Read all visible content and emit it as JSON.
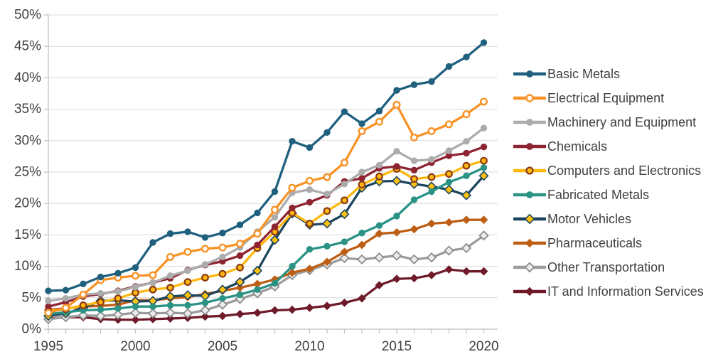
{
  "chart_data": {
    "type": "line",
    "title": "",
    "xlabel": "",
    "ylabel": "",
    "x_start": 1995,
    "x_end": 2020,
    "x": [
      1995,
      1996,
      1997,
      1998,
      1999,
      2000,
      2001,
      2002,
      2003,
      2004,
      2005,
      2006,
      2007,
      2008,
      2009,
      2010,
      2011,
      2012,
      2013,
      2014,
      2015,
      2016,
      2017,
      2018,
      2019,
      2020
    ],
    "x_axis_labels": [
      "1995",
      "2000",
      "2005",
      "2010",
      "2015",
      "2020"
    ],
    "y_axis_labels": [
      "0%",
      "5%",
      "10%",
      "15%",
      "20%",
      "25%",
      "30%",
      "35%",
      "40%",
      "45%",
      "50%"
    ],
    "ylim": [
      0,
      50
    ],
    "y_step": 5,
    "grid": true,
    "legend_position": "right",
    "axis_colors": {
      "grid": "#D9D9D9",
      "axis_line": "#BFBFBF",
      "tick": "#BFBFBF",
      "label_text": "#404040"
    },
    "series": [
      {
        "name": "Basic Metals",
        "color": "#20607F",
        "marker": {
          "shape": "circle",
          "fill": "#20607F",
          "stroke": "#20607F",
          "stroke_width": 0
        },
        "values": [
          6.1,
          6.2,
          7.2,
          8.3,
          8.9,
          9.8,
          13.8,
          15.2,
          15.5,
          14.6,
          15.3,
          16.6,
          18.5,
          21.9,
          29.9,
          28.9,
          31.3,
          34.6,
          32.7,
          34.7,
          38.0,
          38.9,
          39.4,
          41.8,
          43.3,
          45.6
        ]
      },
      {
        "name": "Electrical Equipment",
        "color": "#F79226",
        "marker": {
          "shape": "circle",
          "fill": "#FFFFFF",
          "stroke": "#F79226",
          "stroke_width": 2.4
        },
        "values": [
          2.6,
          3.4,
          5.5,
          7.8,
          8.2,
          8.5,
          8.6,
          11.5,
          12.3,
          12.8,
          13.0,
          13.6,
          15.2,
          19.0,
          22.5,
          23.6,
          24.2,
          26.5,
          31.5,
          33.0,
          35.7,
          30.5,
          31.5,
          32.6,
          34.2,
          36.2
        ]
      },
      {
        "name": "Machinery and Equipment",
        "color": "#ACACAC",
        "marker": {
          "shape": "circle",
          "fill": "#ACACAC",
          "stroke": "#ACACAC",
          "stroke_width": 0
        },
        "values": [
          4.5,
          4.9,
          5.5,
          5.7,
          6.0,
          6.7,
          7.4,
          8.5,
          9.3,
          10.3,
          11.5,
          13.0,
          15.5,
          17.8,
          21.7,
          22.2,
          21.5,
          23.1,
          25.0,
          26.1,
          28.3,
          26.8,
          27.0,
          28.4,
          29.9,
          32.0
        ]
      },
      {
        "name": "Chemicals",
        "color": "#8E2432",
        "marker": {
          "shape": "circle",
          "fill": "#8E2432",
          "stroke": "#8E2432",
          "stroke_width": 0
        },
        "values": [
          3.6,
          4.3,
          5.2,
          5.6,
          6.1,
          6.8,
          7.4,
          8.1,
          9.4,
          10.2,
          10.8,
          11.7,
          13.4,
          16.3,
          19.3,
          20.2,
          21.3,
          23.5,
          24.0,
          25.6,
          25.9,
          25.3,
          26.5,
          27.6,
          28.0,
          29.0
        ]
      },
      {
        "name": "Computers and Electronics",
        "color": "#FFB810",
        "marker": {
          "shape": "circle",
          "fill": "#FFB810",
          "stroke": "#8A3A12",
          "stroke_width": 2.2
        },
        "values": [
          2.9,
          3.2,
          3.8,
          4.3,
          4.9,
          5.8,
          6.3,
          6.6,
          7.5,
          8.2,
          8.8,
          9.8,
          12.9,
          15.5,
          18.5,
          16.8,
          18.8,
          20.5,
          23.0,
          24.3,
          25.5,
          23.9,
          24.2,
          24.7,
          26.0,
          26.8
        ]
      },
      {
        "name": "Fabricated Metals",
        "color": "#2A9384",
        "marker": {
          "shape": "circle",
          "fill": "#2A9384",
          "stroke": "#2A9384",
          "stroke_width": 0
        },
        "values": [
          2.4,
          2.7,
          3.0,
          3.1,
          3.3,
          3.6,
          3.6,
          3.8,
          3.8,
          4.2,
          4.9,
          5.5,
          6.3,
          7.3,
          10.0,
          12.7,
          13.2,
          13.9,
          15.3,
          16.5,
          18.0,
          20.6,
          21.9,
          23.4,
          24.4,
          25.7
        ]
      },
      {
        "name": "Motor Vehicles",
        "color": "#1C455E",
        "marker": {
          "shape": "diamond",
          "fill": "#FFC20E",
          "stroke": "#1C455E",
          "stroke_width": 1.6
        },
        "values": [
          2.1,
          2.5,
          3.4,
          4.5,
          4.6,
          4.4,
          4.5,
          5.2,
          5.4,
          5.3,
          6.3,
          7.5,
          9.3,
          14.2,
          18.4,
          16.6,
          16.8,
          18.3,
          22.5,
          23.5,
          23.6,
          23.1,
          22.7,
          22.2,
          21.3,
          24.4
        ]
      },
      {
        "name": "Pharmaceuticals",
        "color": "#BC5E15",
        "marker": {
          "shape": "diamond",
          "fill": "#BC5E15",
          "stroke": "#BC5E15",
          "stroke_width": 0
        },
        "values": [
          3.1,
          3.3,
          3.6,
          3.7,
          3.9,
          4.6,
          4.6,
          4.9,
          5.1,
          5.6,
          6.1,
          6.6,
          7.2,
          7.9,
          9.0,
          9.6,
          10.7,
          12.3,
          13.4,
          15.2,
          15.4,
          15.9,
          16.8,
          17.0,
          17.4,
          17.4
        ]
      },
      {
        "name": "Other Transportation",
        "color": "#9B9B9B",
        "marker": {
          "shape": "diamond",
          "fill": "#ECECEC",
          "stroke": "#8C8C8C",
          "stroke_width": 1.8
        },
        "values": [
          1.6,
          1.9,
          2.2,
          2.1,
          2.3,
          2.6,
          2.5,
          2.6,
          2.5,
          3.0,
          3.9,
          4.8,
          5.7,
          6.8,
          8.6,
          9.4,
          10.3,
          11.3,
          11.1,
          11.4,
          11.7,
          11.1,
          11.4,
          12.5,
          12.9,
          14.9
        ]
      },
      {
        "name": "IT and Information Services",
        "color": "#6E1A29",
        "marker": {
          "shape": "diamond",
          "fill": "#6E1A29",
          "stroke": "#6E1A29",
          "stroke_width": 0
        },
        "values": [
          1.7,
          1.9,
          1.9,
          1.6,
          1.5,
          1.5,
          1.6,
          1.7,
          1.8,
          2.0,
          2.1,
          2.4,
          2.6,
          3.0,
          3.1,
          3.4,
          3.7,
          4.2,
          4.9,
          7.0,
          8.0,
          8.1,
          8.6,
          9.5,
          9.2,
          9.2
        ]
      }
    ]
  }
}
